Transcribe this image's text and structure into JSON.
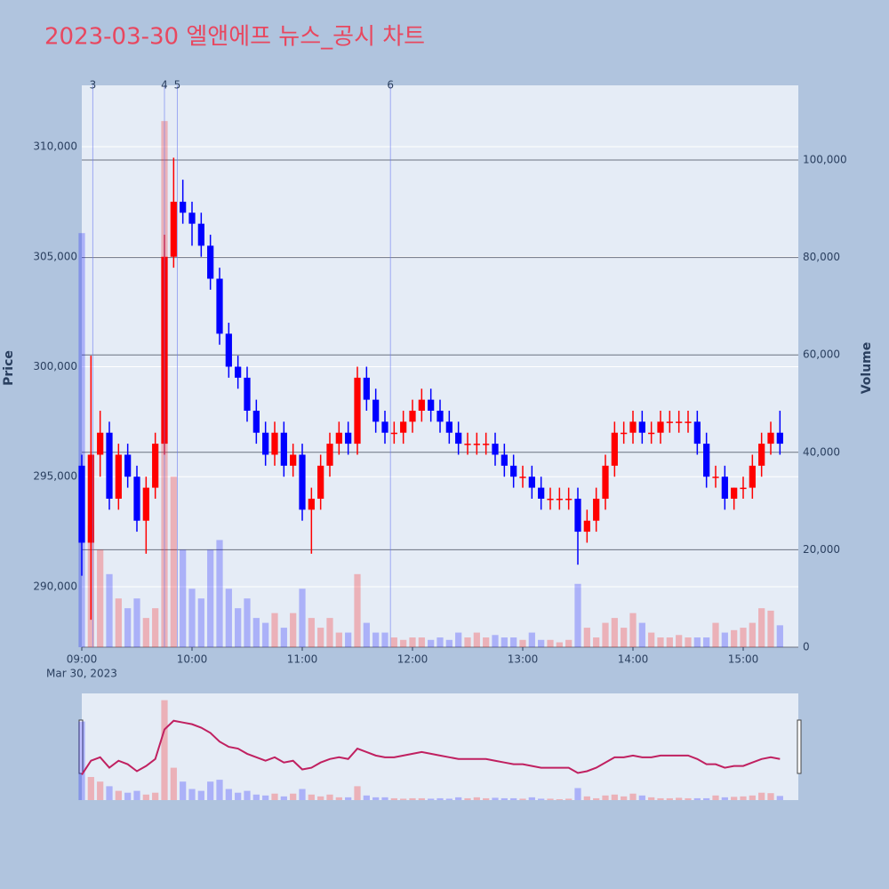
{
  "chart_data": {
    "type": "candlestick",
    "title": "2023-03-30 엘앤에프 뉴스_공시 차트",
    "y_label": "Price",
    "y2_label": "Volume",
    "x_date_label": "Mar 30, 2023",
    "increasing_color": "#ff0000",
    "decreasing_color": "#0000ff",
    "x": [
      "2023-03-30 09:00",
      "2023-03-30 09:05",
      "2023-03-30 09:10",
      "2023-03-30 09:15",
      "2023-03-30 09:20",
      "2023-03-30 09:25",
      "2023-03-30 09:30",
      "2023-03-30 09:35",
      "2023-03-30 09:40",
      "2023-03-30 09:45",
      "2023-03-30 09:50",
      "2023-03-30 09:55",
      "2023-03-30 10:00",
      "2023-03-30 10:05",
      "2023-03-30 10:10",
      "2023-03-30 10:15",
      "2023-03-30 10:20",
      "2023-03-30 10:25",
      "2023-03-30 10:30",
      "2023-03-30 10:35",
      "2023-03-30 10:40",
      "2023-03-30 10:45",
      "2023-03-30 10:50",
      "2023-03-30 10:55",
      "2023-03-30 11:00",
      "2023-03-30 11:05",
      "2023-03-30 11:10",
      "2023-03-30 11:15",
      "2023-03-30 11:20",
      "2023-03-30 11:25",
      "2023-03-30 11:30",
      "2023-03-30 11:35",
      "2023-03-30 11:40",
      "2023-03-30 11:45",
      "2023-03-30 11:50",
      "2023-03-30 11:55",
      "2023-03-30 12:00",
      "2023-03-30 12:05",
      "2023-03-30 12:10",
      "2023-03-30 12:15",
      "2023-03-30 12:20",
      "2023-03-30 12:25",
      "2023-03-30 12:30",
      "2023-03-30 12:35",
      "2023-03-30 12:40",
      "2023-03-30 12:45",
      "2023-03-30 12:50",
      "2023-03-30 12:55",
      "2023-03-30 13:00",
      "2023-03-30 13:05",
      "2023-03-30 13:10",
      "2023-03-30 13:15",
      "2023-03-30 13:20",
      "2023-03-30 13:25",
      "2023-03-30 13:30",
      "2023-03-30 13:35",
      "2023-03-30 13:40",
      "2023-03-30 13:45",
      "2023-03-30 13:50",
      "2023-03-30 13:55",
      "2023-03-30 14:00",
      "2023-03-30 14:05",
      "2023-03-30 14:10",
      "2023-03-30 14:15",
      "2023-03-30 14:20",
      "2023-03-30 14:25",
      "2023-03-30 14:30",
      "2023-03-30 14:35",
      "2023-03-30 14:40",
      "2023-03-30 14:45",
      "2023-03-30 14:50",
      "2023-03-30 14:55",
      "2023-03-30 15:00",
      "2023-03-30 15:05",
      "2023-03-30 15:10",
      "2023-03-30 15:15",
      "2023-03-30 15:20"
    ],
    "open": [
      295500,
      292000,
      296000,
      297000,
      294000,
      296000,
      295000,
      293000,
      294500,
      296500,
      305000,
      307500,
      307000,
      306500,
      305500,
      304000,
      301500,
      300000,
      299500,
      298000,
      297000,
      296000,
      297000,
      295500,
      296000,
      293500,
      294000,
      295500,
      296500,
      297000,
      296500,
      299500,
      298500,
      297500,
      297000,
      297000,
      297500,
      298000,
      298500,
      298000,
      297500,
      297000,
      296500,
      296500,
      296500,
      296500,
      296000,
      295500,
      295000,
      295000,
      294500,
      294000,
      294000,
      294000,
      294000,
      292500,
      293000,
      294000,
      295500,
      297000,
      297000,
      297500,
      297000,
      297000,
      297500,
      297500,
      297500,
      297500,
      296500,
      295000,
      295000,
      294000,
      294500,
      294500,
      295500,
      296500,
      297000
    ],
    "high": [
      296000,
      300500,
      298000,
      297500,
      296500,
      296500,
      295500,
      295000,
      297000,
      306000,
      309500,
      308500,
      307500,
      307000,
      306000,
      304500,
      302000,
      300500,
      300000,
      298500,
      297500,
      297500,
      297500,
      296500,
      296500,
      294500,
      296000,
      297000,
      297500,
      297500,
      300000,
      300000,
      299000,
      298000,
      297500,
      298000,
      298500,
      299000,
      299000,
      298500,
      298000,
      297500,
      297000,
      297000,
      297000,
      297000,
      296500,
      296000,
      295500,
      295500,
      295000,
      294500,
      294500,
      294500,
      294500,
      293500,
      294500,
      296000,
      297500,
      297500,
      298000,
      298000,
      297500,
      298000,
      298000,
      298000,
      298000,
      298000,
      297000,
      295500,
      295500,
      294500,
      295000,
      296000,
      297000,
      297500,
      298000
    ],
    "low": [
      290500,
      288500,
      295000,
      293500,
      293500,
      294500,
      292500,
      291500,
      294000,
      296000,
      304500,
      306500,
      305500,
      305000,
      303500,
      301000,
      299500,
      299000,
      297500,
      296500,
      295500,
      295500,
      295000,
      295000,
      293000,
      291500,
      293500,
      295000,
      296000,
      296000,
      296000,
      298000,
      297000,
      296500,
      296500,
      296500,
      297000,
      297500,
      297500,
      297000,
      296500,
      296000,
      296000,
      296000,
      296000,
      295500,
      295000,
      294500,
      294500,
      294000,
      293500,
      293500,
      293500,
      293500,
      291000,
      292000,
      292500,
      293500,
      295000,
      296500,
      296500,
      296500,
      296500,
      296500,
      297000,
      297000,
      297000,
      296000,
      294500,
      294500,
      293500,
      293500,
      294000,
      294000,
      295000,
      296000,
      296000
    ],
    "close": [
      292000,
      296000,
      297000,
      294000,
      296000,
      295000,
      293000,
      294500,
      296500,
      305000,
      307500,
      307000,
      306500,
      305500,
      304000,
      301500,
      300000,
      299500,
      298000,
      297000,
      296000,
      297000,
      295500,
      296000,
      293500,
      294000,
      295500,
      296500,
      297000,
      296500,
      299500,
      298500,
      297500,
      297000,
      297000,
      297500,
      298000,
      298500,
      298000,
      297500,
      297000,
      296500,
      296500,
      296500,
      296500,
      296000,
      295500,
      295000,
      295000,
      294500,
      294000,
      294000,
      294000,
      294000,
      292500,
      293000,
      294000,
      295500,
      297000,
      297000,
      297500,
      297000,
      297000,
      297500,
      297500,
      297500,
      297500,
      296500,
      295000,
      295000,
      294000,
      294500,
      294500,
      295500,
      296500,
      297000,
      296500
    ],
    "volume": [
      85000,
      25000,
      20000,
      15000,
      10000,
      8000,
      10000,
      6000,
      8000,
      108000,
      35000,
      20000,
      12000,
      10000,
      20000,
      22000,
      12000,
      8000,
      10000,
      6000,
      5000,
      7000,
      4000,
      7000,
      12000,
      6000,
      4000,
      6000,
      3000,
      3000,
      15000,
      5000,
      3000,
      3000,
      2000,
      1500,
      2000,
      2000,
      1500,
      2000,
      1500,
      3000,
      2000,
      3000,
      2000,
      2500,
      2000,
      2000,
      1500,
      3000,
      1500,
      1500,
      1000,
      1500,
      13000,
      4000,
      2000,
      5000,
      6000,
      4000,
      7000,
      5000,
      3000,
      2000,
      2000,
      2500,
      2000,
      2000,
      2000,
      5000,
      3000,
      3500,
      4000,
      5000,
      8000,
      7500,
      4500
    ],
    "annotations": [
      {
        "x": "2023-03-30 09:06",
        "label": "3"
      },
      {
        "x": "2023-03-30 09:45",
        "label": "4"
      },
      {
        "x": "2023-03-30 09:52",
        "label": "5"
      },
      {
        "x": "2023-03-30 11:48",
        "label": "6"
      }
    ],
    "xlim": [
      "2023-03-30 09:00",
      "2023-03-30 15:30"
    ],
    "xticks": [
      {
        "value": "2023-03-30 09:00",
        "label": "09:00"
      },
      {
        "value": "2023-03-30 10:00",
        "label": "10:00"
      },
      {
        "value": "2023-03-30 11:00",
        "label": "11:00"
      },
      {
        "value": "2023-03-30 12:00",
        "label": "12:00"
      },
      {
        "value": "2023-03-30 13:00",
        "label": "13:00"
      },
      {
        "value": "2023-03-30 14:00",
        "label": "14:00"
      },
      {
        "value": "2023-03-30 15:00",
        "label": "15:00"
      }
    ],
    "ylim": [
      287250,
      312790
    ],
    "yticks": [
      {
        "value": 290000,
        "label": "290,000"
      },
      {
        "value": 295000,
        "label": "295,000"
      },
      {
        "value": 300000,
        "label": "300,000"
      },
      {
        "value": 305000,
        "label": "305,000"
      },
      {
        "value": 310000,
        "label": "310,000"
      }
    ],
    "y2lim": [
      0,
      115330
    ],
    "y2ticks": [
      0,
      {
        "value": 20000,
        "label": "20,000"
      },
      {
        "value": 40000,
        "label": "40,000"
      },
      {
        "value": 60000,
        "label": "60,000"
      },
      {
        "value": 80000,
        "label": "80,000"
      },
      {
        "value": 100000,
        "label": "100,000"
      }
    ]
  }
}
